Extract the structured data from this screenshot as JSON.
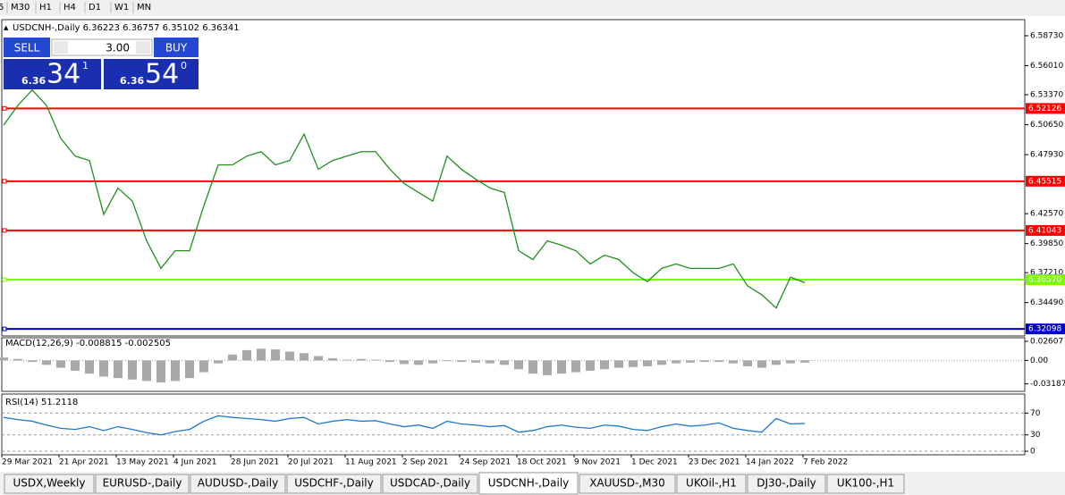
{
  "toolbar": {
    "timeframes": [
      "5",
      "M30",
      "H1",
      "H4",
      "D1",
      "W1",
      "MN"
    ]
  },
  "trade_panel": {
    "sell": "SELL",
    "lot": "3.00",
    "buy": "BUY",
    "sell_price": [
      "6.36",
      "34",
      "1"
    ],
    "buy_price": [
      "6.36",
      "54",
      "0"
    ]
  },
  "chart_data": [
    {
      "type": "line",
      "title": "USDCNH-,Daily 6.36223 6.36757 6.35102 6.36341",
      "color": "#1f8f1f",
      "date_labels": [
        "29 Mar 2021",
        "21 Apr 2021",
        "13 May 2021",
        "4 Jun 2021",
        "28 Jun 2021",
        "20 Jul 2021",
        "11 Aug 2021",
        "2 Sep 2021",
        "24 Sep 2021",
        "18 Oct 2021",
        "9 Nov 2021",
        "1 Dec 2021",
        "23 Dec 2021",
        "14 Jan 2022",
        "7 Feb 2022"
      ],
      "values": [
        6.506,
        6.524,
        6.538,
        6.524,
        6.494,
        6.478,
        6.474,
        6.425,
        6.449,
        6.437,
        6.401,
        6.376,
        6.392,
        6.392,
        6.433,
        6.47,
        6.47,
        6.478,
        6.482,
        6.47,
        6.474,
        6.498,
        6.466,
        6.474,
        6.478,
        6.482,
        6.482,
        6.466,
        6.453,
        6.445,
        6.437,
        6.478,
        6.466,
        6.457,
        6.449,
        6.445,
        6.392,
        6.384,
        6.401,
        6.397,
        6.392,
        6.38,
        6.388,
        6.384,
        6.372,
        6.364,
        6.376,
        6.38,
        6.376,
        6.376,
        6.376,
        6.38,
        6.36,
        6.352,
        6.34,
        6.368,
        6.363
      ],
      "ylim": [
        6.3146,
        6.6019
      ],
      "yticks": [
        {
          "value": 6.5873,
          "label": "6.58730"
        },
        {
          "value": 6.5601,
          "label": "6.56010"
        },
        {
          "value": 6.5337,
          "label": "6.53370"
        },
        {
          "value": 6.5065,
          "label": "6.50650"
        },
        {
          "value": 6.4793,
          "label": "6.47930"
        },
        {
          "value": 6.4257,
          "label": "6.42570"
        },
        {
          "value": 6.3985,
          "label": "6.39850"
        },
        {
          "value": 6.3721,
          "label": "6.37210"
        },
        {
          "value": 6.3449,
          "label": "6.34490"
        }
      ],
      "levels": [
        {
          "value": 6.52126,
          "label": "6.52126",
          "color": "#ff0000"
        },
        {
          "value": 6.45515,
          "label": "6.45515",
          "color": "#ff0000"
        },
        {
          "value": 6.41043,
          "label": "6.41043",
          "color": "#ff0000"
        },
        {
          "value": 6.3657,
          "label": "6.36570",
          "color": "#7cfc00"
        },
        {
          "value": 6.32098,
          "label": "6.32098",
          "color": "#0000cd"
        }
      ]
    },
    {
      "type": "bar",
      "title": "MACD(12,26,9) -0.008815 -0.002505",
      "color": "#a9a9a9",
      "zero_line": true,
      "values": [
        0.004,
        0.002,
        -0.002,
        -0.006,
        -0.01,
        -0.014,
        -0.018,
        -0.022,
        -0.024,
        -0.026,
        -0.028,
        -0.03,
        -0.028,
        -0.024,
        -0.016,
        -0.004,
        0.008,
        0.014,
        0.016,
        0.015,
        0.012,
        0.01,
        0.006,
        0.003,
        0.001,
        0.002,
        0.001,
        -0.002,
        -0.005,
        -0.006,
        -0.004,
        -0.001,
        -0.002,
        -0.003,
        -0.004,
        -0.006,
        -0.012,
        -0.018,
        -0.02,
        -0.018,
        -0.016,
        -0.014,
        -0.012,
        -0.01,
        -0.009,
        -0.008,
        -0.006,
        -0.004,
        -0.003,
        -0.002,
        -0.002,
        -0.004,
        -0.008,
        -0.01,
        -0.006,
        -0.004,
        -0.003
      ],
      "ylim": [
        -0.0421,
        0.0309
      ],
      "yticks": [
        0.02607,
        {
          "value": 0,
          "label": "0.00"
        },
        -0.031872
      ]
    },
    {
      "type": "line",
      "title": "RSI(14) 51.2118",
      "color": "#1e78d2",
      "grid": true,
      "values": [
        62,
        58,
        55,
        48,
        42,
        40,
        45,
        38,
        45,
        40,
        34,
        30,
        36,
        40,
        55,
        65,
        62,
        60,
        58,
        55,
        60,
        62,
        50,
        55,
        58,
        55,
        56,
        50,
        45,
        48,
        42,
        55,
        50,
        48,
        45,
        47,
        35,
        38,
        45,
        48,
        44,
        42,
        48,
        46,
        40,
        38,
        45,
        50,
        46,
        48,
        52,
        42,
        38,
        35,
        60,
        50,
        51
      ],
      "ylim": [
        0,
        100
      ],
      "yticks": [
        70,
        30,
        0
      ]
    }
  ],
  "tabs": {
    "items": [
      "USDX,Weekly",
      "EURUSD-,Daily",
      "AUDUSD-,Daily",
      "USDCHF-,Daily",
      "USDCAD-,Daily",
      "USDCNH-,Daily",
      "XAUUSD-,M30",
      "UKOil-,H1",
      "DJ30-,Daily",
      "UK100-,H1"
    ],
    "active": 5
  }
}
